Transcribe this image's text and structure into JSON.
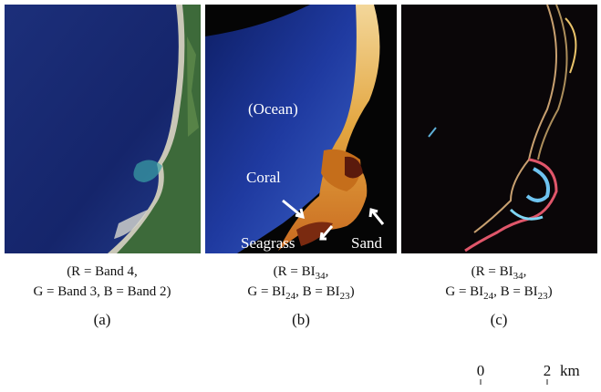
{
  "panels": [
    {
      "caption": [
        [
          {
            "text": "(R = Band 4,"
          }
        ],
        [
          {
            "text": "G = Band 3, B = Band 2)"
          }
        ]
      ],
      "label": "(a)"
    },
    {
      "caption": [
        [
          {
            "text": "(R = BI"
          },
          {
            "text": "34",
            "sub": true
          },
          {
            "text": ","
          }
        ],
        [
          {
            "text": "G = BI"
          },
          {
            "text": "24",
            "sub": true
          },
          {
            "text": ", B = BI"
          },
          {
            "text": "23",
            "sub": true
          },
          {
            "text": ")"
          }
        ]
      ],
      "label": "(b)",
      "annotations": [
        "(Ocean)",
        "Coral",
        "Seagrass",
        "Sand"
      ]
    },
    {
      "caption": [
        [
          {
            "text": "(R = BI"
          },
          {
            "text": "34",
            "sub": true
          },
          {
            "text": ","
          }
        ],
        [
          {
            "text": "G = BI"
          },
          {
            "text": "24",
            "sub": true
          },
          {
            "text": ", B = BI"
          },
          {
            "text": "23",
            "sub": true
          },
          {
            "text": ")"
          }
        ]
      ],
      "label": "(c)"
    }
  ],
  "scale_bar": {
    "ticks": [
      "0",
      "2"
    ],
    "unit": "km"
  }
}
